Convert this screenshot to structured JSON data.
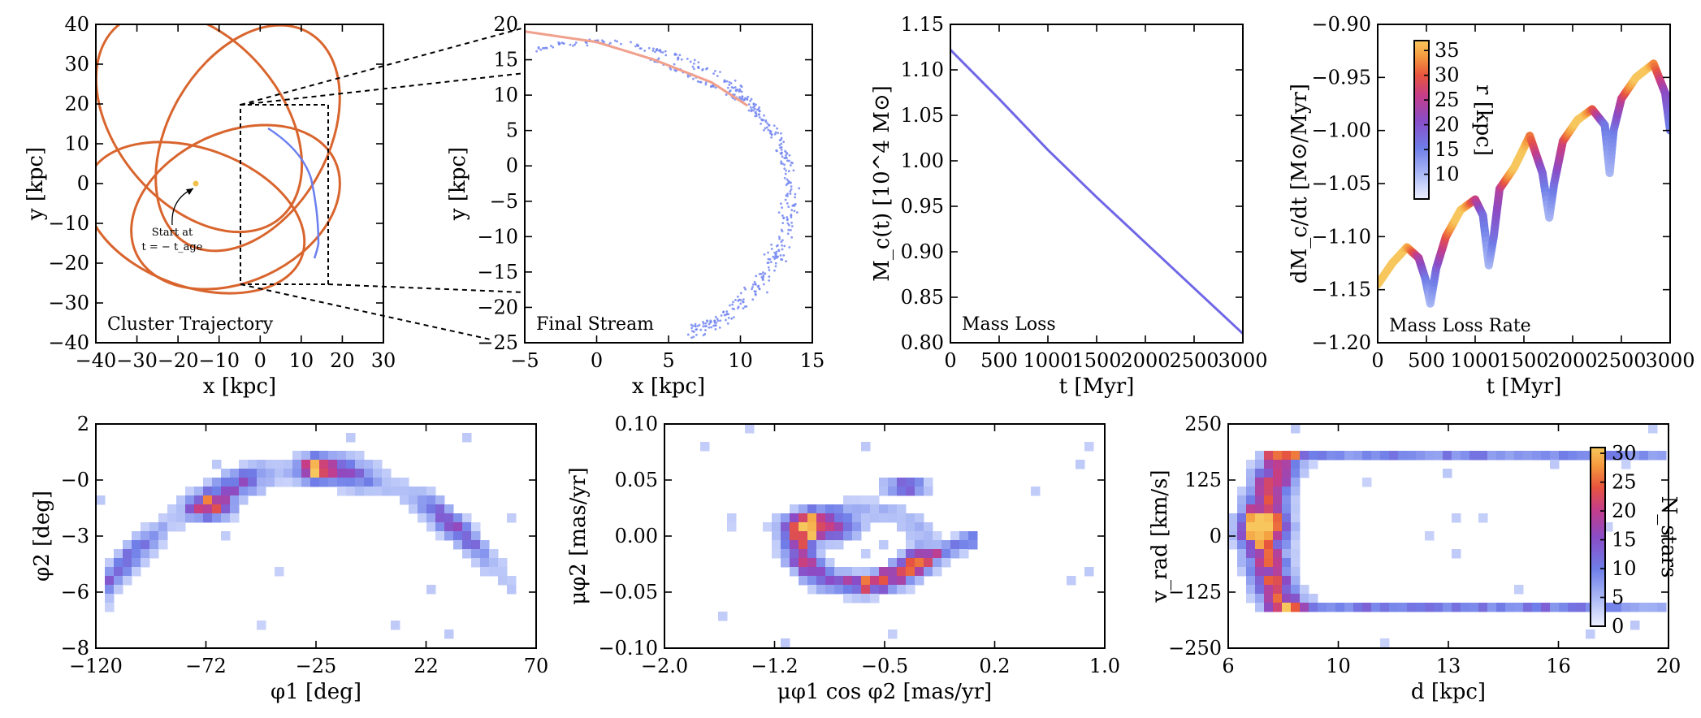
{
  "figure": {
    "colors": {
      "orbit": "#d9652e",
      "stream": "#6b7ff0",
      "stream_light": "#9aa8f4",
      "massloss_line": "#6f67e6",
      "track": "#f0a08c"
    },
    "cmap": [
      "#eef1ff",
      "#aebcf6",
      "#6f7ee8",
      "#8a4cc6",
      "#c43d8a",
      "#e8553e",
      "#f59a3e",
      "#f7c65c"
    ]
  },
  "chart_data": [
    {
      "id": "cluster-trajectory",
      "type": "line",
      "title": "Cluster Trajectory",
      "xlabel": "x [kpc]",
      "ylabel": "y [kpc]",
      "xlim": [
        -40,
        30
      ],
      "ylim": [
        -40,
        40
      ],
      "xticks": [
        "−40",
        "−30",
        "−20",
        "−10",
        "0",
        "10",
        "20",
        "30"
      ],
      "yticks": [
        "40",
        "30",
        "20",
        "10",
        "0",
        "−10",
        "−20",
        "−30",
        "−40"
      ],
      "annotation": {
        "line1": "Start at",
        "line2": "t = − t_age"
      },
      "start_point": [
        -15,
        0
      ],
      "zoom_box": {
        "x": [
          -5,
          15
        ],
        "y": [
          -25,
          20
        ]
      }
    },
    {
      "id": "final-stream",
      "type": "scatter",
      "title": "Final Stream",
      "xlabel": "x [kpc]",
      "ylabel": "y [kpc]",
      "xlim": [
        -5,
        15
      ],
      "ylim": [
        -25,
        20
      ],
      "xticks": [
        "−5",
        "0",
        "5",
        "10",
        "15"
      ],
      "yticks": [
        "20",
        "15",
        "10",
        "5",
        "0",
        "−5",
        "−10",
        "−15",
        "−20",
        "−25"
      ],
      "track": [
        [
          -5,
          19
        ],
        [
          0,
          17.5
        ],
        [
          4,
          15
        ],
        [
          8,
          11.8
        ],
        [
          10.5,
          8.5
        ]
      ]
    },
    {
      "id": "mass-loss",
      "type": "line",
      "title": "Mass Loss",
      "xlabel": "t [Myr]",
      "ylabel": "M_c(t) [10^4 M⊙]",
      "xlim": [
        0,
        3000
      ],
      "ylim": [
        0.8,
        1.15
      ],
      "xticks": [
        "0",
        "500",
        "1000",
        "1500",
        "2000",
        "2500",
        "3000"
      ],
      "yticks": [
        "1.15",
        "1.10",
        "1.05",
        "1.00",
        "0.95",
        "0.90",
        "0.85",
        "0.80"
      ],
      "x": [
        0,
        500,
        1000,
        1500,
        2000,
        2500,
        3000
      ],
      "values": [
        1.122,
        1.068,
        1.012,
        0.96,
        0.91,
        0.86,
        0.81
      ]
    },
    {
      "id": "mass-loss-rate",
      "type": "line",
      "title": "Mass Loss Rate",
      "xlabel": "t [Myr]",
      "ylabel": "dM_c/dt [M⊙/Myr]",
      "xlim": [
        0,
        3000
      ],
      "ylim": [
        -1.2,
        -0.9
      ],
      "xticks": [
        "0",
        "500",
        "1000",
        "1500",
        "2000",
        "2500",
        "3000"
      ],
      "yticks": [
        "−0.90",
        "−0.95",
        "−1.00",
        "−1.05",
        "−1.10",
        "−1.15",
        "−1.20"
      ],
      "colorbar": {
        "label": "r [kpc]",
        "ticks": [
          "35",
          "30",
          "25",
          "20",
          "15",
          "10"
        ],
        "range": [
          5,
          37
        ]
      },
      "x": [
        0,
        150,
        300,
        420,
        490,
        540,
        600,
        700,
        850,
        1000,
        1080,
        1140,
        1190,
        1250,
        1400,
        1560,
        1690,
        1760,
        1810,
        1900,
        2050,
        2200,
        2330,
        2380,
        2420,
        2500,
        2650,
        2830,
        2950,
        3000
      ],
      "values": [
        -1.145,
        -1.125,
        -1.11,
        -1.12,
        -1.14,
        -1.163,
        -1.13,
        -1.1,
        -1.075,
        -1.065,
        -1.08,
        -1.127,
        -1.1,
        -1.055,
        -1.035,
        -1.005,
        -1.04,
        -1.082,
        -1.05,
        -1.01,
        -0.99,
        -0.98,
        -0.995,
        -1.04,
        -1.0,
        -0.97,
        -0.95,
        -0.937,
        -0.965,
        -1.0
      ]
    },
    {
      "id": "phi1-phi2",
      "type": "heatmap",
      "xlabel": "φ1 [deg]",
      "ylabel": "φ2 [deg]",
      "xlim": [
        -120,
        70
      ],
      "ylim": [
        -8,
        2
      ],
      "xticks": [
        "−120",
        "−72",
        "−25",
        "22",
        "70"
      ],
      "yticks": [
        "2",
        "−0",
        "−3",
        "−6",
        "−8"
      ]
    },
    {
      "id": "pm-plane",
      "type": "heatmap",
      "xlabel": "μφ1 cos φ2 [mas/yr]",
      "ylabel": "μφ2 [mas/yr]",
      "xlim": [
        -2.0,
        1.0
      ],
      "ylim": [
        -0.1,
        0.1
      ],
      "xticks": [
        "−2.0",
        "−1.2",
        "−0.5",
        "0.2",
        "1.0"
      ],
      "yticks": [
        "0.10",
        "0.05",
        "0.00",
        "−0.05",
        "−0.10"
      ]
    },
    {
      "id": "distance-vrad",
      "type": "heatmap",
      "xlabel": "d [kpc]",
      "ylabel": "v_rad [km/s]",
      "xlim": [
        6,
        20
      ],
      "ylim": [
        -250,
        250
      ],
      "xticks": [
        "6",
        "10",
        "13",
        "16",
        "20"
      ],
      "yticks": [
        "250",
        "125",
        "0",
        "−125",
        "−250"
      ],
      "colorbar": {
        "label": "N_stars",
        "ticks": [
          "30",
          "25",
          "20",
          "15",
          "10",
          "5",
          "0"
        ],
        "range": [
          0,
          31
        ]
      }
    }
  ]
}
